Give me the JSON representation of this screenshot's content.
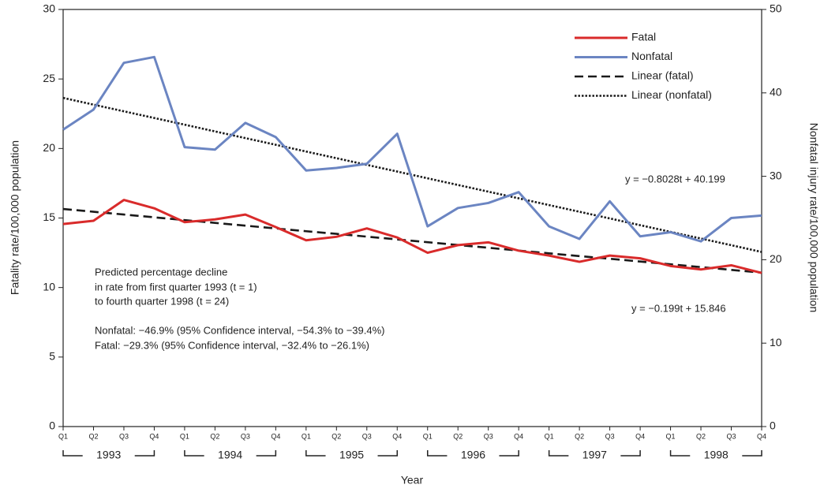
{
  "chart_data": {
    "type": "line",
    "x_label": "Year",
    "y_label": "Fatality rate/100,000 population",
    "y2_label": "Nonfatal injury rate/100,000 population",
    "categories": [
      "Q1",
      "Q2",
      "Q3",
      "Q4",
      "Q1",
      "Q2",
      "Q3",
      "Q4",
      "Q1",
      "Q2",
      "Q3",
      "Q4",
      "Q1",
      "Q2",
      "Q3",
      "Q4",
      "Q1",
      "Q2",
      "Q3",
      "Q4",
      "Q1",
      "Q2",
      "Q3",
      "Q4"
    ],
    "category_groups": [
      "1993",
      "1994",
      "1995",
      "1996",
      "1997",
      "1998"
    ],
    "ylim": [
      0,
      30
    ],
    "yticks": [
      0,
      5,
      10,
      15,
      20,
      25,
      30
    ],
    "y2lim": [
      0,
      50
    ],
    "y2ticks": [
      0,
      10,
      20,
      30,
      40,
      50
    ],
    "grid": false,
    "legend": "top-right",
    "series": [
      {
        "name": "Fatal",
        "color": "#d92b2b",
        "dash": "solid",
        "axis": "y",
        "values": [
          14.57,
          14.8,
          16.3,
          15.7,
          14.7,
          14.9,
          15.25,
          14.35,
          13.4,
          13.65,
          14.25,
          13.6,
          12.5,
          13.05,
          13.25,
          12.65,
          12.3,
          11.85,
          12.3,
          12.1,
          11.55,
          11.3,
          11.6,
          11.05
        ]
      },
      {
        "name": "Nonfatal",
        "color": "#6b85c2",
        "dash": "solid",
        "axis": "y2",
        "values": [
          35.6,
          38.0,
          43.6,
          44.3,
          33.5,
          33.2,
          36.4,
          34.7,
          30.7,
          31.0,
          31.5,
          35.1,
          24.0,
          26.2,
          26.8,
          28.1,
          24.0,
          22.5,
          27.0,
          22.8,
          23.3,
          22.2,
          25.0,
          25.3
        ]
      },
      {
        "name": "Linear (fatal)",
        "color": "#1a1a1a",
        "dash": "dashed",
        "axis": "y",
        "values": [
          15.65,
          15.45,
          15.25,
          15.05,
          14.85,
          14.65,
          14.45,
          14.25,
          14.05,
          13.86,
          13.66,
          13.46,
          13.26,
          13.06,
          12.86,
          12.66,
          12.46,
          12.26,
          12.07,
          11.87,
          11.67,
          11.47,
          11.27,
          11.07
        ]
      },
      {
        "name": "Linear (nonfatal)",
        "color": "#1a1a1a",
        "dash": "dotted",
        "axis": "y2",
        "values": [
          39.4,
          38.59,
          37.79,
          36.99,
          36.19,
          35.38,
          34.58,
          33.78,
          32.97,
          32.17,
          31.37,
          30.57,
          29.76,
          28.96,
          28.16,
          27.36,
          26.55,
          25.75,
          24.95,
          24.14,
          23.34,
          22.54,
          21.74,
          20.93
        ]
      }
    ],
    "equations": [
      "y = −0.8028t + 40.199",
      "y = −0.199t + 15.846"
    ],
    "annotation_lines": [
      "Predicted percentage decline",
      "in rate from first quarter 1993 (t = 1)",
      "to fourth quarter 1998 (t = 24)",
      "Nonfatal: −46.9% (95% Confidence interval, −54.3% to −39.4%)",
      "Fatal: −29.3% (95% Confidence interval, −32.4% to −26.1%)"
    ]
  }
}
